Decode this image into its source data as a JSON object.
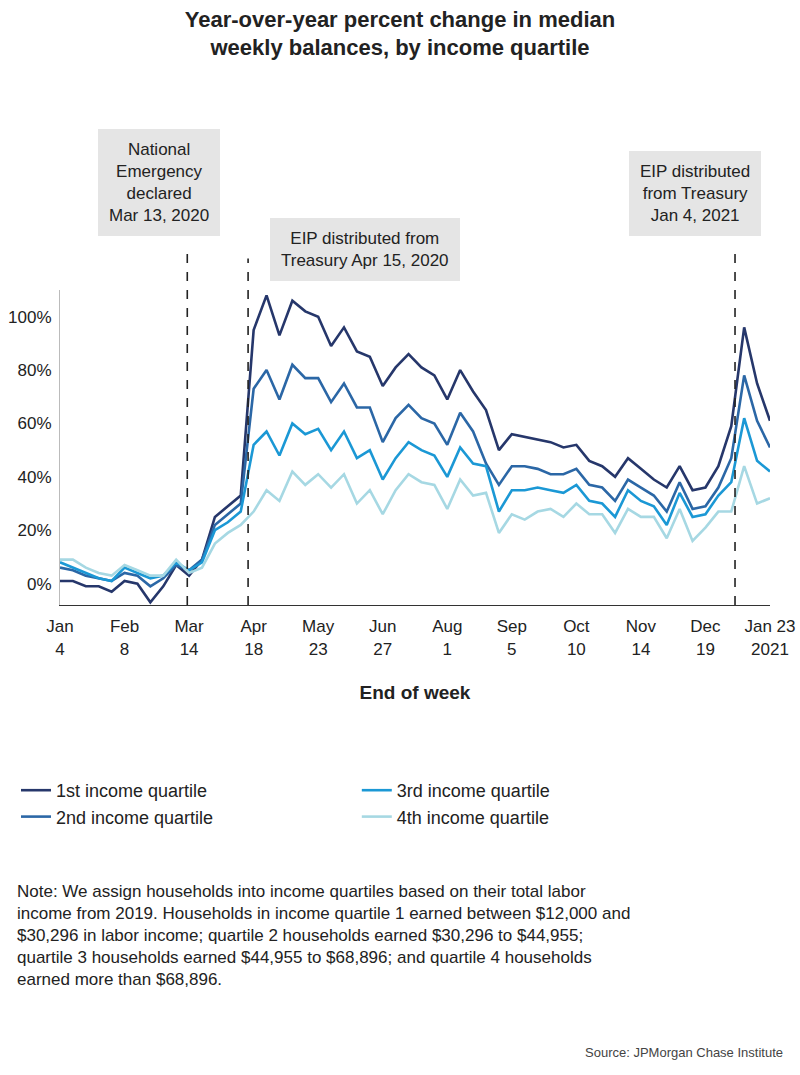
{
  "chart_data": {
    "type": "line",
    "title": "Year-over-year percent change in median\nweekly balances, by income quartile",
    "x_label": "End of week",
    "categories": [
      "Jan\n4",
      null,
      null,
      null,
      null,
      "Feb\n8",
      null,
      null,
      null,
      null,
      "Mar\n14",
      null,
      null,
      null,
      null,
      "Apr\n18",
      null,
      null,
      null,
      null,
      "May\n23",
      null,
      null,
      null,
      null,
      "Jun\n27",
      null,
      null,
      null,
      null,
      "Aug\n1",
      null,
      null,
      null,
      null,
      "Sep\n5",
      null,
      null,
      null,
      null,
      "Oct\n10",
      null,
      null,
      null,
      null,
      "Nov\n14",
      null,
      null,
      null,
      null,
      "Dec\n19",
      null,
      null,
      null,
      null,
      "Jan 23\n2021"
    ],
    "series": [
      {
        "name": "1st income quartile",
        "color": "#26376b",
        "line_style": "solid",
        "values": [
          1,
          1,
          -1,
          -1,
          -3,
          1,
          0,
          -7,
          -1,
          7,
          3,
          9,
          25,
          29,
          33,
          95,
          108,
          93,
          106,
          102,
          100,
          89,
          96,
          87,
          85,
          74,
          81,
          86,
          81,
          78,
          69,
          80,
          72,
          65,
          50,
          56,
          55,
          54,
          53,
          51,
          52,
          46,
          44,
          40,
          47,
          43,
          39,
          36,
          44,
          35,
          36,
          44,
          59,
          96,
          75,
          61
        ]
      },
      {
        "name": "2nd income quartile",
        "color": "#2b67a6",
        "line_style": "solid",
        "values": [
          6,
          5,
          3,
          2,
          1,
          4,
          3,
          -1,
          2,
          7,
          5,
          9,
          22,
          26,
          30,
          73,
          80,
          69,
          82,
          77,
          77,
          68,
          75,
          66,
          66,
          53,
          62,
          67,
          62,
          60,
          52,
          64,
          57,
          45,
          37,
          44,
          44,
          43,
          41,
          41,
          43,
          37,
          36,
          31,
          39,
          36,
          33,
          27,
          38,
          28,
          29,
          36,
          47,
          78,
          61,
          51
        ]
      },
      {
        "name": "3rd income quartile",
        "color": "#1b98d5",
        "line_style": "solid",
        "values": [
          8,
          6,
          4,
          2,
          1,
          6,
          4,
          2,
          3,
          8,
          5,
          8,
          20,
          23,
          27,
          52,
          57,
          48,
          60,
          56,
          58,
          50,
          57,
          47,
          50,
          39,
          47,
          53,
          50,
          48,
          40,
          51,
          45,
          44,
          27,
          35,
          35,
          36,
          35,
          34,
          37,
          31,
          30,
          25,
          35,
          31,
          29,
          22,
          34,
          25,
          26,
          33,
          38,
          62,
          46,
          42
        ]
      },
      {
        "name": "4th income quartile",
        "color": "#a6d8e3",
        "line_style": "solid",
        "values": [
          9,
          9,
          6,
          4,
          3,
          7,
          5,
          3,
          3,
          9,
          4,
          6,
          15,
          19,
          22,
          27,
          35,
          31,
          42,
          37,
          41,
          36,
          41,
          30,
          35,
          26,
          35,
          41,
          38,
          37,
          28,
          39,
          33,
          34,
          19,
          26,
          24,
          27,
          28,
          25,
          30,
          26,
          26,
          19,
          28,
          25,
          25,
          17,
          28,
          16,
          21,
          27,
          27,
          44,
          30,
          32
        ]
      }
    ],
    "ylim": [
      -8,
      110
    ],
    "yticks": [
      {
        "value": 0,
        "label": "0%"
      },
      {
        "value": 20,
        "label": "20%"
      },
      {
        "value": 40,
        "label": "40%"
      },
      {
        "value": 60,
        "label": "60%"
      },
      {
        "value": 80,
        "label": "80%"
      },
      {
        "value": 100,
        "label": "100%"
      }
    ],
    "grid": false,
    "legend": "bottom",
    "annotations": [
      {
        "text": "National\nEmergency\ndeclared\nMar 13, 2020",
        "x": 9.86,
        "line_style": "dashed"
      },
      {
        "text": "EIP distributed from\nTreasury Apr 15, 2020",
        "x": 14.57,
        "line_style": "dashed"
      },
      {
        "text": "EIP distributed\nfrom Treasury\nJan 4, 2021",
        "x": 52.29,
        "line_style": "dashed"
      }
    ],
    "note": "Note: We assign households into income quartiles based on their total labor\nincome from 2019. Households in income quartile 1 earned between $12,000 and\n$30,296 in labor income; quartile 2 households earned $30,296 to $44,955;\nquartile 3 households earned $44,955 to $68,896; and quartile 4 households\nearned more than $68,896.",
    "source": "Source: JPMorgan Chase Institute"
  }
}
